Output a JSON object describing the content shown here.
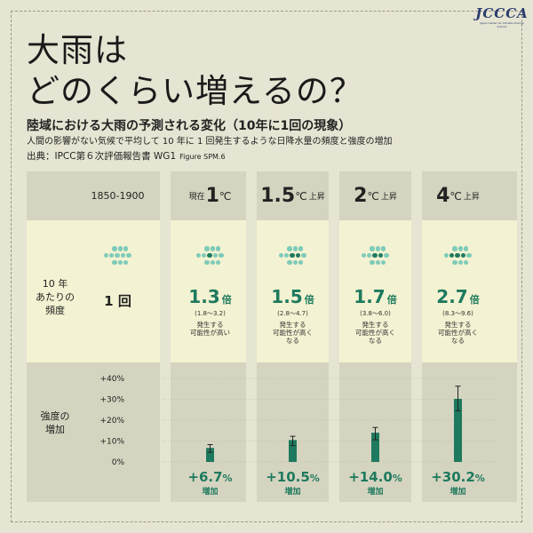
{
  "logo": {
    "text": "JCCCA",
    "sub": "Japan Center for Climate Change Actions"
  },
  "title": {
    "line1": "大雨は",
    "line2": "どのくらい増えるの？"
  },
  "subtitle": "陸域における大雨の予測される変化（10年に1回の現象）",
  "caption": "人間の影響がない気候で平均して 10 年に 1 回発生するような日降水量の頻度と強度の増加",
  "source": {
    "text": "出典：IPCC第６次評価報告書 WG1",
    "figure": "Figure SPM.6"
  },
  "row_labels": {
    "frequency": [
      "10 年",
      "あたりの",
      "頻度"
    ],
    "intensity": [
      "強度の",
      "増加"
    ]
  },
  "colors": {
    "accent": "#1e7a5e",
    "dot_dark": "#1e7a5e",
    "dot_light": "#7ecbb8"
  },
  "columns": [
    {
      "header": {
        "base": "1850-1900"
      },
      "frequency": {
        "base_text": "1 回"
      },
      "dots_dark": 0
    },
    {
      "header": {
        "prefix": "現在",
        "num": "1",
        "unit": "℃",
        "suffix": ""
      },
      "frequency": {
        "value": "1.3",
        "unit": "倍",
        "range": "(1.8〜3.2)",
        "note": [
          "発生する",
          "可能性が高い"
        ]
      },
      "intensity": {
        "value": "+6.7",
        "unit": "%",
        "label": "増加"
      },
      "dots_dark": 1
    },
    {
      "header": {
        "prefix": "",
        "num": "1.5",
        "unit": "℃",
        "suffix": "上昇"
      },
      "frequency": {
        "value": "1.5",
        "unit": "倍",
        "range": "(2.8〜4.7)",
        "note": [
          "発生する",
          "可能性が高く",
          "なる"
        ]
      },
      "intensity": {
        "value": "+10.5",
        "unit": "%",
        "label": "増加"
      },
      "dots_dark": 2
    },
    {
      "header": {
        "prefix": "",
        "num": "2",
        "unit": "℃",
        "suffix": "上昇"
      },
      "frequency": {
        "value": "1.7",
        "unit": "倍",
        "range": "(3.8〜6.0)",
        "note": [
          "発生する",
          "可能性が高く",
          "なる"
        ]
      },
      "intensity": {
        "value": "+14.0",
        "unit": "%",
        "label": "増加"
      },
      "dots_dark": 2
    },
    {
      "header": {
        "prefix": "",
        "num": "4",
        "unit": "℃",
        "suffix": "上昇"
      },
      "frequency": {
        "value": "2.7",
        "unit": "倍",
        "range": "(8.3〜9.6)",
        "note": [
          "発生する",
          "可能性が高く",
          "なる"
        ]
      },
      "intensity": {
        "value": "+30.2",
        "unit": "%",
        "label": "増加"
      },
      "dots_dark": 3
    }
  ],
  "chart_data": {
    "type": "bar",
    "categories": [
      "現在 1℃",
      "1.5℃ 上昇",
      "2℃ 上昇",
      "4℃ 上昇"
    ],
    "series": [
      {
        "values": [
          6.7,
          10.5,
          14.0,
          30.2
        ],
        "error_low": [
          4.6,
          7.8,
          10.6,
          24.5
        ],
        "error_high": [
          8.3,
          12.3,
          16.5,
          36.3
        ]
      }
    ],
    "yticks": [
      "0%",
      "+10%",
      "+20%",
      "+30%",
      "+40%"
    ],
    "ylim": [
      0,
      40
    ]
  }
}
